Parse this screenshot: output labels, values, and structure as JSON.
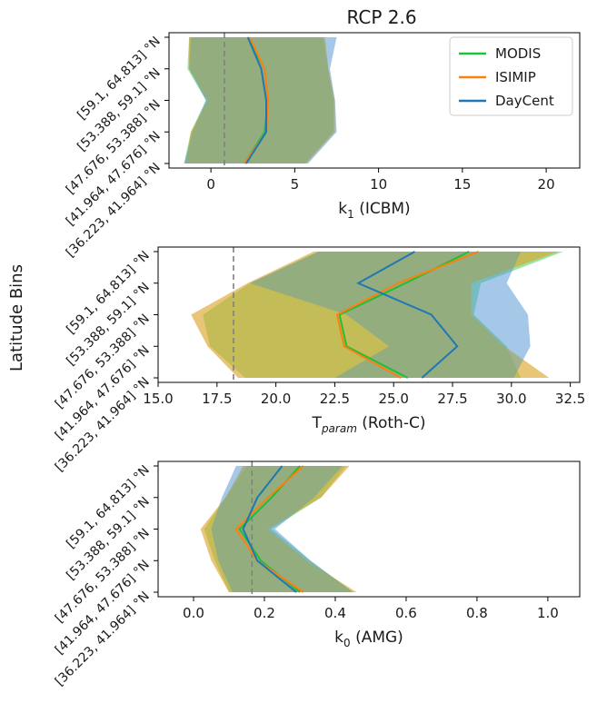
{
  "figure": {
    "suptitle": "RCP 2.6",
    "ylabel": "Latitude Bins",
    "legend": [
      "MODIS",
      "ISIMIP",
      "DayCent"
    ],
    "colors": {
      "MODIS": "#1fbf3a",
      "ISIMIP": "#ff7f0e",
      "DayCent": "#1f77b4",
      "fill_MODIS": "#33cc55",
      "fill_ISIMIP": "#ff9a40",
      "fill_DayCent": "#5b9bd5",
      "olive": "#a8b400",
      "reference_line": "#808080"
    }
  },
  "chart_data": [
    {
      "type": "line",
      "xlabel_main": "k",
      "xlabel_sub": "1",
      "xlabel_rest": " (ICBM)",
      "categories": [
        "[59.1, 64.813] °N",
        "[53.388, 59.1] °N",
        "[47.676, 53.388] °N",
        "[41.964, 47.676] °N",
        "[36.223, 41.964] °N"
      ],
      "xlim": [
        -2.5,
        22.0
      ],
      "xticks": [
        0,
        5,
        10,
        15,
        20
      ],
      "xtick_labels": [
        "0",
        "5",
        "10",
        "15",
        "20"
      ],
      "reference_x": 0.8,
      "legend_position": "top-right",
      "series": [
        {
          "name": "MODIS",
          "values": [
            2.2,
            3.2,
            3.4,
            3.2,
            2.0
          ],
          "low": [
            -1.3,
            -1.4,
            -0.3,
            -1.2,
            -1.6
          ],
          "high": [
            6.7,
            7.0,
            7.3,
            7.3,
            5.6
          ]
        },
        {
          "name": "ISIMIP",
          "values": [
            2.3,
            3.2,
            3.4,
            3.3,
            2.0
          ],
          "low": [
            -1.3,
            -1.3,
            -0.2,
            -1.2,
            -1.5
          ],
          "high": [
            6.8,
            7.0,
            7.4,
            7.4,
            5.7
          ]
        },
        {
          "name": "DayCent",
          "values": [
            2.2,
            3.0,
            3.3,
            3.3,
            2.1
          ],
          "low": [
            -1.2,
            -1.3,
            -0.3,
            -1.1,
            -1.6
          ],
          "high": [
            7.5,
            7.1,
            7.4,
            7.5,
            5.8
          ]
        }
      ]
    },
    {
      "type": "line",
      "xlabel_main": "T",
      "xlabel_sub": "param",
      "xlabel_rest": " (Roth-C)",
      "categories": [
        "[59.1, 64.813] °N",
        "[53.388, 59.1] °N",
        "[47.676, 53.388] °N",
        "[41.964, 47.676] °N",
        "[36.223, 41.964] °N"
      ],
      "xlim": [
        15.0,
        32.9
      ],
      "xticks": [
        15.0,
        17.5,
        20.0,
        22.5,
        25.0,
        27.5,
        30.0,
        32.5
      ],
      "xtick_labels": [
        "15.0",
        "17.5",
        "20.0",
        "22.5",
        "25.0",
        "27.5",
        "30.0",
        "32.5"
      ],
      "reference_x": 18.2,
      "series": [
        {
          "name": "MODIS",
          "values": [
            28.2,
            25.5,
            22.7,
            23.0,
            25.6
          ],
          "low": [
            21.8,
            18.9,
            16.9,
            17.2,
            18.7
          ],
          "high": [
            32.2,
            28.7,
            28.4,
            29.8,
            30.4
          ]
        },
        {
          "name": "ISIMIP",
          "values": [
            28.6,
            25.2,
            22.6,
            22.9,
            25.3
          ],
          "low": [
            21.6,
            18.8,
            16.4,
            17.1,
            18.4
          ],
          "high": [
            32.0,
            28.3,
            28.3,
            29.7,
            31.6
          ]
        },
        {
          "name": "DayCent",
          "values": [
            25.9,
            23.5,
            26.6,
            27.7,
            26.2
          ],
          "low": [
            21.8,
            18.9,
            23.0,
            24.8,
            22.5
          ],
          "high": [
            30.4,
            29.8,
            30.7,
            30.8,
            30.1
          ]
        }
      ]
    },
    {
      "type": "line",
      "xlabel_main": "k",
      "xlabel_sub": "0",
      "xlabel_rest": " (AMG)",
      "categories": [
        "[59.1, 64.813] °N",
        "[53.388, 59.1] °N",
        "[47.676, 53.388] °N",
        "[41.964, 47.676] °N",
        "[36.223, 41.964] °N"
      ],
      "xlim": [
        -0.1,
        1.09
      ],
      "xticks": [
        0.0,
        0.2,
        0.4,
        0.6,
        0.8,
        1.0
      ],
      "xtick_labels": [
        "0.0",
        "0.2",
        "0.4",
        "0.6",
        "0.8",
        "1.0"
      ],
      "reference_x": 0.165,
      "series": [
        {
          "name": "MODIS",
          "values": [
            0.3,
            0.22,
            0.13,
            0.19,
            0.3
          ],
          "low": [
            0.15,
            0.09,
            0.03,
            0.06,
            0.1
          ],
          "high": [
            0.43,
            0.36,
            0.22,
            0.33,
            0.45
          ]
        },
        {
          "name": "ISIMIP",
          "values": [
            0.31,
            0.21,
            0.12,
            0.18,
            0.31
          ],
          "low": [
            0.14,
            0.09,
            0.02,
            0.05,
            0.1
          ],
          "high": [
            0.44,
            0.36,
            0.21,
            0.32,
            0.46
          ]
        },
        {
          "name": "DayCent",
          "values": [
            0.25,
            0.18,
            0.14,
            0.18,
            0.29
          ],
          "low": [
            0.12,
            0.08,
            0.05,
            0.07,
            0.11
          ],
          "high": [
            0.42,
            0.34,
            0.23,
            0.33,
            0.45
          ]
        }
      ]
    }
  ]
}
